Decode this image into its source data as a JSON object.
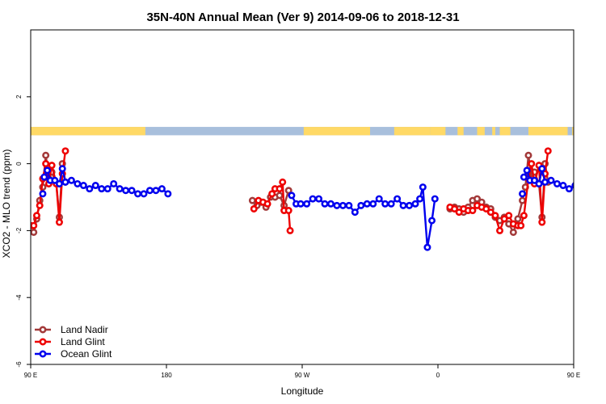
{
  "chart_data": {
    "type": "line",
    "title": "35N-40N Annual Mean (Ver 9)   2014-09-06 to 2018-12-31",
    "xlabel": "Longitude",
    "ylabel": "XCO2 - MLO trend (ppm)",
    "xlim": [
      90,
      450
    ],
    "ylim": [
      -6,
      4
    ],
    "x_ticks": [
      {
        "value": 90,
        "label": "90 E"
      },
      {
        "value": 180,
        "label": "180"
      },
      {
        "value": 270,
        "label": "90 W"
      },
      {
        "value": 360,
        "label": "0"
      },
      {
        "value": 450,
        "label": "90 E"
      },
      {
        "value": 540,
        "label": "180"
      }
    ],
    "x_ticks_note": "",
    "y_ticks": [
      {
        "value": -6,
        "label": "-6"
      },
      {
        "value": -4,
        "label": "-4"
      },
      {
        "value": -2,
        "label": "-2"
      },
      {
        "value": 0,
        "label": "0"
      },
      {
        "value": 2,
        "label": "2"
      }
    ],
    "grid": false,
    "legend_position": "bottom-left",
    "land_sea_strip": {
      "y_range": [
        0.85,
        1.1
      ],
      "ocean_color": "#a8bfdc",
      "land_color": "#ffd966",
      "land_x_ranges": [
        [
          90,
          104
        ],
        [
          103,
          166
        ],
        [
          271,
          315
        ],
        [
          331,
          355
        ],
        [
          355,
          365
        ],
        [
          373,
          377
        ],
        [
          386,
          391
        ],
        [
          396,
          398
        ],
        [
          401,
          408
        ],
        [
          420,
          446
        ],
        [
          449,
          480
        ],
        [
          482,
          486
        ],
        [
          495,
          508
        ],
        [
          513,
          520
        ],
        [
          525,
          575
        ]
      ]
    },
    "series": [
      {
        "name": "Land Nadir",
        "color": "#a33a3a",
        "points": [
          [
            92,
            -2.05
          ],
          [
            94,
            -1.65
          ],
          [
            96,
            -1.1
          ],
          [
            98,
            -0.7
          ],
          [
            100,
            0.25
          ],
          [
            102,
            -0.45
          ],
          [
            104,
            -0.25
          ],
          [
            107,
            -0.6
          ],
          [
            109,
            -1.6
          ],
          [
            111,
            0.0
          ],
          [
            113,
            -0.55
          ],
          [
            237,
            -1.1
          ],
          [
            240,
            -1.25
          ],
          [
            243,
            -1.15
          ],
          [
            246,
            -1.3
          ],
          [
            249,
            -1.0
          ],
          [
            252,
            -1.0
          ],
          [
            255,
            -0.95
          ],
          [
            258,
            -1.25
          ],
          [
            261,
            -0.8
          ],
          [
            368,
            -1.35
          ],
          [
            371,
            -1.3
          ],
          [
            374,
            -1.35
          ],
          [
            377,
            -1.45
          ],
          [
            380,
            -1.3
          ],
          [
            383,
            -1.1
          ],
          [
            386,
            -1.05
          ],
          [
            389,
            -1.15
          ],
          [
            392,
            -1.3
          ],
          [
            395,
            -1.35
          ],
          [
            398,
            -1.6
          ],
          [
            401,
            -1.7
          ],
          [
            404,
            -1.6
          ],
          [
            407,
            -1.8
          ],
          [
            410,
            -2.05
          ],
          [
            413,
            -1.65
          ],
          [
            416,
            -1.1
          ],
          [
            418,
            -0.7
          ],
          [
            420,
            0.25
          ],
          [
            422,
            -0.45
          ],
          [
            424,
            -0.25
          ],
          [
            427,
            -0.6
          ],
          [
            429,
            -1.6
          ],
          [
            431,
            0.0
          ],
          [
            433,
            -0.55
          ]
        ]
      },
      {
        "name": "Land Glint",
        "color": "#ee0000",
        "points": [
          [
            90,
            -1.85
          ],
          [
            92,
            -1.85
          ],
          [
            94,
            -1.55
          ],
          [
            96,
            -1.25
          ],
          [
            98,
            -0.45
          ],
          [
            100,
            0.0
          ],
          [
            102,
            -0.6
          ],
          [
            104,
            -0.05
          ],
          [
            107,
            -0.6
          ],
          [
            109,
            -1.75
          ],
          [
            111,
            -0.3
          ],
          [
            113,
            0.38
          ],
          [
            238,
            -1.35
          ],
          [
            241,
            -1.1
          ],
          [
            244,
            -1.15
          ],
          [
            247,
            -1.2
          ],
          [
            250,
            -0.9
          ],
          [
            252,
            -0.75
          ],
          [
            255,
            -0.75
          ],
          [
            257,
            -0.55
          ],
          [
            258,
            -1.4
          ],
          [
            261,
            -1.4
          ],
          [
            262,
            -2.0
          ],
          [
            368,
            -1.3
          ],
          [
            371,
            -1.35
          ],
          [
            374,
            -1.45
          ],
          [
            377,
            -1.35
          ],
          [
            380,
            -1.4
          ],
          [
            383,
            -1.4
          ],
          [
            386,
            -1.25
          ],
          [
            389,
            -1.3
          ],
          [
            392,
            -1.35
          ],
          [
            395,
            -1.45
          ],
          [
            398,
            -1.55
          ],
          [
            401,
            -2.0
          ],
          [
            404,
            -1.65
          ],
          [
            407,
            -1.55
          ],
          [
            410,
            -1.8
          ],
          [
            413,
            -1.85
          ],
          [
            415,
            -1.85
          ],
          [
            417,
            -1.55
          ],
          [
            420,
            -0.45
          ],
          [
            422,
            0.0
          ],
          [
            424,
            -0.6
          ],
          [
            427,
            -0.05
          ],
          [
            429,
            -1.75
          ],
          [
            431,
            -0.3
          ],
          [
            433,
            0.38
          ]
        ]
      },
      {
        "name": "Ocean Glint",
        "color": "#0000ee",
        "points": [
          [
            99,
            -0.4
          ],
          [
            101,
            -0.2
          ],
          [
            103,
            -0.5
          ],
          [
            106,
            -0.5
          ],
          [
            109,
            -0.6
          ],
          [
            111,
            -0.15
          ],
          [
            113,
            -0.55
          ],
          [
            117,
            -0.5
          ],
          [
            121,
            -0.6
          ],
          [
            125,
            -0.65
          ],
          [
            129,
            -0.75
          ],
          [
            133,
            -0.65
          ],
          [
            137,
            -0.75
          ],
          [
            141,
            -0.75
          ],
          [
            145,
            -0.6
          ],
          [
            149,
            -0.75
          ],
          [
            153,
            -0.8
          ],
          [
            157,
            -0.8
          ],
          [
            161,
            -0.9
          ],
          [
            165,
            -0.9
          ],
          [
            169,
            -0.8
          ],
          [
            173,
            -0.8
          ],
          [
            177,
            -0.75
          ],
          [
            181,
            -0.9
          ],
          [
            263,
            -0.95
          ],
          [
            266,
            -1.2
          ],
          [
            269,
            -1.2
          ],
          [
            273,
            -1.2
          ],
          [
            277,
            -1.05
          ],
          [
            281,
            -1.05
          ],
          [
            285,
            -1.2
          ],
          [
            289,
            -1.2
          ],
          [
            293,
            -1.25
          ],
          [
            297,
            -1.25
          ],
          [
            301,
            -1.25
          ],
          [
            305,
            -1.45
          ],
          [
            309,
            -1.25
          ],
          [
            313,
            -1.2
          ],
          [
            317,
            -1.2
          ],
          [
            321,
            -1.05
          ],
          [
            325,
            -1.2
          ],
          [
            329,
            -1.2
          ],
          [
            333,
            -1.05
          ],
          [
            337,
            -1.25
          ],
          [
            341,
            -1.25
          ],
          [
            345,
            -1.2
          ],
          [
            348,
            -1.05
          ],
          [
            350,
            -0.7
          ],
          [
            353,
            -2.5
          ],
          [
            356,
            -1.7
          ],
          [
            358,
            -1.05
          ],
          [
            417,
            -0.4
          ],
          [
            419,
            -0.2
          ],
          [
            421,
            -0.5
          ],
          [
            424,
            -0.5
          ],
          [
            427,
            -0.6
          ],
          [
            429,
            -0.15
          ],
          [
            431,
            -0.55
          ],
          [
            435,
            -0.5
          ],
          [
            439,
            -0.6
          ],
          [
            443,
            -0.65
          ],
          [
            447,
            -0.75
          ],
          [
            451,
            -0.65
          ],
          [
            455,
            -0.75
          ],
          [
            459,
            -0.75
          ],
          [
            463,
            -0.6
          ],
          [
            467,
            -0.75
          ],
          [
            471,
            -0.8
          ],
          [
            475,
            -0.8
          ],
          [
            479,
            -0.9
          ],
          [
            483,
            -0.9
          ],
          [
            487,
            -0.8
          ],
          [
            491,
            -0.8
          ],
          [
            495,
            -0.75
          ],
          [
            499,
            -0.9
          ]
        ],
        "extra_points": [
          [
            98,
            -0.9
          ],
          [
            416,
            -0.9
          ]
        ]
      }
    ]
  }
}
